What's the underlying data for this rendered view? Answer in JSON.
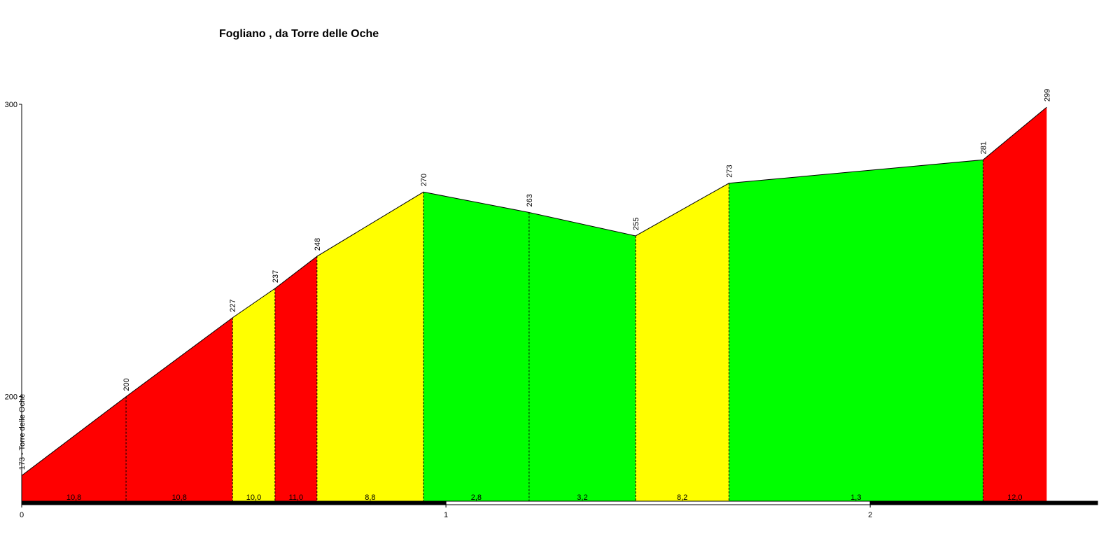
{
  "chart_data": {
    "type": "elevation-profile",
    "title": "Fogliano , da Torre delle Oche",
    "x": [
      0,
      0.246,
      0.497,
      0.597,
      0.696,
      0.947,
      1.196,
      1.447,
      1.667,
      2.266,
      2.416
    ],
    "series": [
      {
        "values": [
          173,
          200,
          227,
          237,
          248,
          270,
          263,
          255,
          273,
          281,
          299
        ],
        "value_labels": [
          "173 - Torre delle Oche",
          "200",
          "227",
          "237",
          "248",
          "270",
          "263",
          "255",
          "273",
          "281",
          "299"
        ]
      }
    ],
    "segments": {
      "values": [
        10.8,
        10.8,
        10.0,
        11.0,
        8.8,
        2.8,
        3.2,
        8.2,
        1.3,
        12.0
      ],
      "value_labels": [
        "10,8",
        "10,8",
        "10,0",
        "11,0",
        "8,8",
        "2,8",
        "3,2",
        "8,2",
        "1,3",
        "12,0"
      ],
      "colors": [
        "#ff0000",
        "#ff0000",
        "#ffff00",
        "#ff0000",
        "#ffff00",
        "#00ff00",
        "#00ff00",
        "#ffff00",
        "#00ff00",
        "#ff0000"
      ]
    },
    "xlim": [
      0,
      2.536
    ],
    "ylim": [
      164,
      300
    ],
    "xticks": [
      0,
      1,
      2
    ],
    "yticks": [
      200,
      300
    ]
  }
}
